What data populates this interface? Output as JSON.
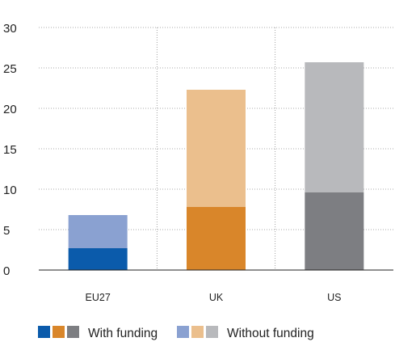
{
  "chart_data": {
    "type": "bar",
    "stacked": true,
    "categories": [
      "EU27",
      "UK",
      "US"
    ],
    "series": [
      {
        "name": "With funding",
        "values": [
          2.7,
          7.8,
          9.6
        ],
        "colors": [
          "#0b5bab",
          "#d9862a",
          "#7d7e82"
        ]
      },
      {
        "name": "Without funding",
        "values": [
          4.1,
          14.5,
          16.1
        ],
        "colors": [
          "#8aa1d1",
          "#ebbf8d",
          "#b8b9bc"
        ]
      }
    ],
    "yticks": [
      "0",
      "5",
      "10",
      "15",
      "20",
      "25",
      "30"
    ],
    "ylim": [
      0,
      30
    ],
    "grid": true,
    "legend_position": "bottom"
  }
}
